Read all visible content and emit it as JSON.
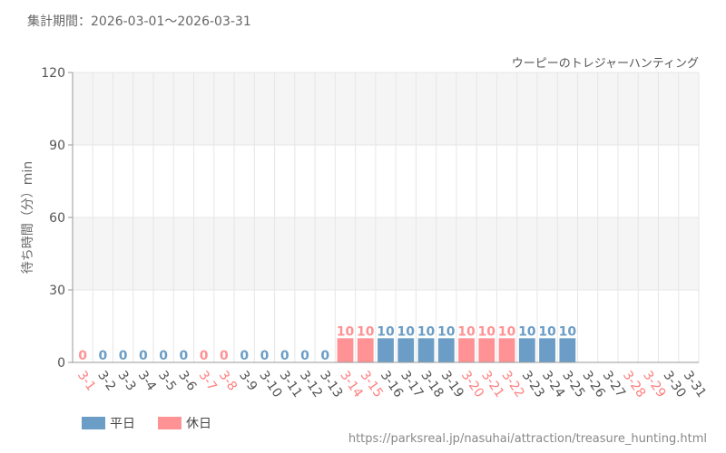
{
  "header": {
    "period": "集計期間：2026-03-01～2026-03-31",
    "attraction": "ウーピーのトレジャーハンティング"
  },
  "source_url": "https://parksreal.jp/nasuhai/attraction/treasure_hunting.html",
  "legend": [
    {
      "key": "weekday",
      "label": "平日",
      "color": "#6b9dc6"
    },
    {
      "key": "holiday",
      "label": "休日",
      "color": "#ff9294"
    }
  ],
  "chart_data": {
    "type": "bar",
    "ylabel": "待ち時間（分）min",
    "ylim": [
      0,
      120
    ],
    "yticks": [
      0,
      30,
      60,
      90,
      120
    ],
    "grid": true,
    "legend_position": "bottom-left",
    "categories": [
      "3-1",
      "3-2",
      "3-3",
      "3-4",
      "3-5",
      "3-6",
      "3-7",
      "3-8",
      "3-9",
      "3-10",
      "3-11",
      "3-12",
      "3-13",
      "3-14",
      "3-15",
      "3-16",
      "3-17",
      "3-18",
      "3-19",
      "3-20",
      "3-21",
      "3-22",
      "3-23",
      "3-24",
      "3-25",
      "3-26",
      "3-27",
      "3-28",
      "3-29",
      "3-30",
      "3-31"
    ],
    "values": [
      0,
      0,
      0,
      0,
      0,
      0,
      0,
      0,
      0,
      0,
      0,
      0,
      0,
      10,
      10,
      10,
      10,
      10,
      10,
      10,
      10,
      10,
      10,
      10,
      10,
      null,
      null,
      null,
      null,
      null,
      null
    ],
    "day_type": [
      "holiday",
      "weekday",
      "weekday",
      "weekday",
      "weekday",
      "weekday",
      "holiday",
      "holiday",
      "weekday",
      "weekday",
      "weekday",
      "weekday",
      "weekday",
      "holiday",
      "holiday",
      "weekday",
      "weekday",
      "weekday",
      "weekday",
      "holiday",
      "holiday",
      "holiday",
      "weekday",
      "weekday",
      "weekday",
      "weekday",
      "weekday",
      "holiday",
      "holiday",
      "weekday",
      "weekday"
    ]
  }
}
